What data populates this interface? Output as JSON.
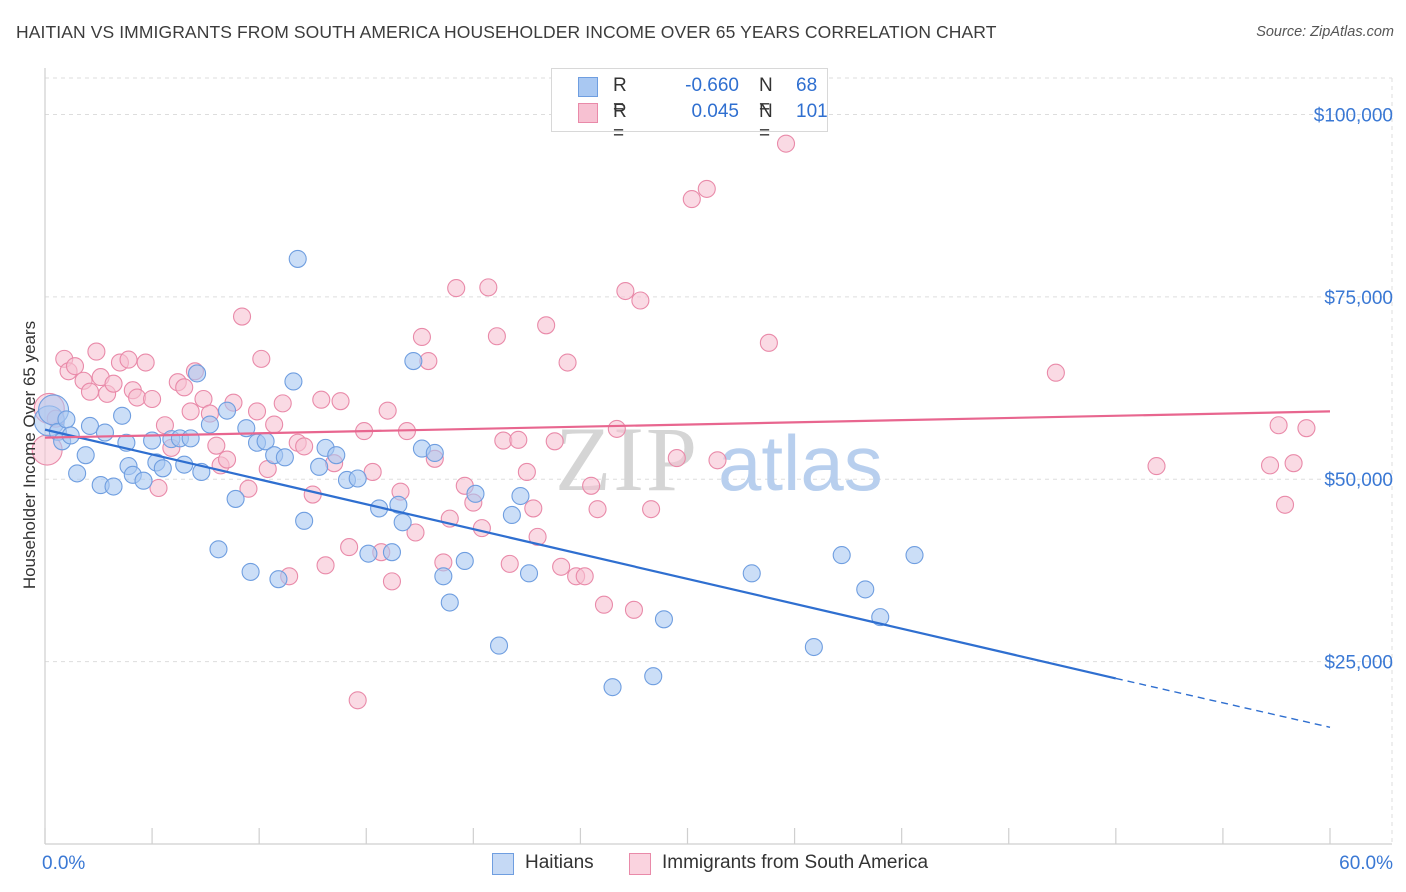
{
  "header": {
    "title": "HAITIAN VS IMMIGRANTS FROM SOUTH AMERICA HOUSEHOLDER INCOME OVER 65 YEARS CORRELATION CHART",
    "source": "Source: ZipAtlas.com"
  },
  "legend": {
    "series1": {
      "r_label": "R =",
      "r_value": "-0.660",
      "n_label": "N =",
      "n_value": "68"
    },
    "series2": {
      "r_label": "R =",
      "r_value": "0.045",
      "n_label": "N =",
      "n_value": "101"
    }
  },
  "watermark": {
    "zip": "ZIP",
    "atlas": "atlas"
  },
  "colors": {
    "blue_fill": "#a9c8f2",
    "blue_stroke": "#6f9ee0",
    "blue_line": "#2f6fd0",
    "pink_fill": "#f7c1d2",
    "pink_stroke": "#e98aa9",
    "pink_line": "#e8668f",
    "grid": "#dddddd",
    "tick_label": "#3a78d4"
  },
  "chart_data": {
    "type": "scatter",
    "title": "HAITIAN VS IMMIGRANTS FROM SOUTH AMERICA HOUSEHOLDER INCOME OVER 65 YEARS CORRELATION CHART",
    "xlabel": "",
    "ylabel": "Householder Income Over 65 years",
    "xlim": [
      0,
      60
    ],
    "ylim": [
      0,
      105000
    ],
    "x_tick_labels": [
      "0.0%",
      "60.0%"
    ],
    "y_ticks": [
      {
        "value": 25000,
        "label": "$25,000"
      },
      {
        "value": 50000,
        "label": "$50,000"
      },
      {
        "value": 75000,
        "label": "$75,000"
      },
      {
        "value": 100000,
        "label": "$100,000"
      }
    ],
    "series": [
      {
        "name": "Haitians",
        "color": "#a9c8f2",
        "trend": {
          "x_start": 0,
          "y_start": 56800,
          "x_end": 50,
          "y_end": 22700,
          "dashed_to_x": 60,
          "dashed_to_y": 16000
        },
        "points": [
          [
            0.2,
            58000
          ],
          [
            0.4,
            59500
          ],
          [
            0.6,
            56500
          ],
          [
            0.8,
            55200
          ],
          [
            1.0,
            58200
          ],
          [
            1.2,
            56000
          ],
          [
            1.5,
            50800
          ],
          [
            1.9,
            53300
          ],
          [
            2.1,
            57300
          ],
          [
            2.6,
            49200
          ],
          [
            2.8,
            56400
          ],
          [
            3.2,
            49000
          ],
          [
            3.6,
            58700
          ],
          [
            3.8,
            55000
          ],
          [
            3.9,
            51800
          ],
          [
            4.1,
            50600
          ],
          [
            4.6,
            49800
          ],
          [
            5.0,
            55300
          ],
          [
            5.2,
            52300
          ],
          [
            5.5,
            51500
          ],
          [
            5.9,
            55500
          ],
          [
            6.3,
            55600
          ],
          [
            6.5,
            52000
          ],
          [
            6.8,
            55600
          ],
          [
            7.1,
            64500
          ],
          [
            7.3,
            51000
          ],
          [
            7.7,
            57500
          ],
          [
            8.1,
            40400
          ],
          [
            8.5,
            59400
          ],
          [
            8.9,
            47300
          ],
          [
            9.4,
            57000
          ],
          [
            9.6,
            37300
          ],
          [
            9.9,
            55000
          ],
          [
            10.3,
            55200
          ],
          [
            10.7,
            53300
          ],
          [
            10.9,
            36300
          ],
          [
            11.2,
            53000
          ],
          [
            11.6,
            63400
          ],
          [
            11.8,
            80200
          ],
          [
            12.1,
            44300
          ],
          [
            12.8,
            51700
          ],
          [
            13.1,
            54300
          ],
          [
            13.6,
            53300
          ],
          [
            14.1,
            49900
          ],
          [
            14.6,
            50100
          ],
          [
            15.1,
            39800
          ],
          [
            15.6,
            46000
          ],
          [
            16.2,
            40000
          ],
          [
            16.5,
            46500
          ],
          [
            16.7,
            44100
          ],
          [
            17.2,
            66200
          ],
          [
            17.6,
            54200
          ],
          [
            18.2,
            53600
          ],
          [
            18.6,
            36700
          ],
          [
            18.9,
            33100
          ],
          [
            19.6,
            38800
          ],
          [
            20.1,
            48000
          ],
          [
            21.2,
            27200
          ],
          [
            21.8,
            45100
          ],
          [
            22.2,
            47700
          ],
          [
            22.6,
            37100
          ],
          [
            26.5,
            21500
          ],
          [
            28.4,
            23000
          ],
          [
            28.9,
            30800
          ],
          [
            33.0,
            37100
          ],
          [
            35.9,
            27000
          ],
          [
            37.2,
            39600
          ],
          [
            38.3,
            34900
          ],
          [
            39.0,
            31100
          ],
          [
            40.6,
            39600
          ]
        ]
      },
      {
        "name": "Immigrants from South America",
        "color": "#f7c1d2",
        "trend": {
          "x_start": 0,
          "y_start": 55700,
          "x_end": 60,
          "y_end": 59300
        },
        "points": [
          [
            0.1,
            54000
          ],
          [
            0.2,
            59700
          ],
          [
            0.5,
            58300
          ],
          [
            0.9,
            66500
          ],
          [
            1.1,
            64800
          ],
          [
            1.4,
            65500
          ],
          [
            1.8,
            63500
          ],
          [
            2.1,
            62000
          ],
          [
            2.4,
            67500
          ],
          [
            2.6,
            64000
          ],
          [
            2.9,
            61700
          ],
          [
            3.2,
            63100
          ],
          [
            3.5,
            66000
          ],
          [
            3.9,
            66400
          ],
          [
            4.1,
            62200
          ],
          [
            4.3,
            61200
          ],
          [
            4.7,
            66000
          ],
          [
            5.0,
            61000
          ],
          [
            5.3,
            48800
          ],
          [
            5.6,
            57400
          ],
          [
            5.9,
            54300
          ],
          [
            6.2,
            63300
          ],
          [
            6.5,
            62600
          ],
          [
            6.8,
            59300
          ],
          [
            7.0,
            64800
          ],
          [
            7.4,
            61000
          ],
          [
            7.7,
            59000
          ],
          [
            8.0,
            54600
          ],
          [
            8.2,
            51900
          ],
          [
            8.5,
            52700
          ],
          [
            8.8,
            60500
          ],
          [
            9.2,
            72300
          ],
          [
            9.5,
            48700
          ],
          [
            9.9,
            59300
          ],
          [
            10.1,
            66500
          ],
          [
            10.4,
            51400
          ],
          [
            10.7,
            57500
          ],
          [
            11.1,
            60400
          ],
          [
            11.4,
            36700
          ],
          [
            11.8,
            55000
          ],
          [
            12.1,
            54500
          ],
          [
            12.5,
            47900
          ],
          [
            12.9,
            60900
          ],
          [
            13.1,
            38200
          ],
          [
            13.5,
            52200
          ],
          [
            13.8,
            60700
          ],
          [
            14.2,
            40700
          ],
          [
            14.6,
            19700
          ],
          [
            14.9,
            56600
          ],
          [
            15.3,
            51000
          ],
          [
            15.7,
            40000
          ],
          [
            16.0,
            59400
          ],
          [
            16.2,
            36000
          ],
          [
            16.6,
            48300
          ],
          [
            16.9,
            56600
          ],
          [
            17.3,
            42700
          ],
          [
            17.6,
            69500
          ],
          [
            17.9,
            66200
          ],
          [
            18.2,
            52800
          ],
          [
            18.6,
            38600
          ],
          [
            18.9,
            44600
          ],
          [
            19.2,
            76200
          ],
          [
            19.6,
            49100
          ],
          [
            20.0,
            46800
          ],
          [
            20.4,
            43300
          ],
          [
            20.7,
            76300
          ],
          [
            21.1,
            69600
          ],
          [
            21.4,
            55300
          ],
          [
            21.7,
            38400
          ],
          [
            22.1,
            55400
          ],
          [
            22.5,
            51000
          ],
          [
            22.8,
            46000
          ],
          [
            23.0,
            42100
          ],
          [
            23.4,
            71100
          ],
          [
            23.8,
            55200
          ],
          [
            24.1,
            38000
          ],
          [
            24.4,
            66000
          ],
          [
            24.8,
            36700
          ],
          [
            25.2,
            36700
          ],
          [
            25.5,
            49100
          ],
          [
            25.8,
            45900
          ],
          [
            26.1,
            32800
          ],
          [
            26.7,
            56900
          ],
          [
            27.1,
            75800
          ],
          [
            27.5,
            32100
          ],
          [
            27.8,
            74500
          ],
          [
            28.3,
            45900
          ],
          [
            28.8,
            99000
          ],
          [
            29.5,
            52900
          ],
          [
            30.2,
            88400
          ],
          [
            30.9,
            89800
          ],
          [
            31.4,
            52600
          ],
          [
            33.8,
            68700
          ],
          [
            34.6,
            96000
          ],
          [
            47.2,
            64600
          ],
          [
            51.9,
            51800
          ],
          [
            57.2,
            51900
          ],
          [
            57.6,
            57400
          ],
          [
            57.9,
            46500
          ],
          [
            58.3,
            52200
          ],
          [
            58.9,
            57000
          ]
        ]
      }
    ]
  },
  "bottom_legend": {
    "series1_label": "Haitians",
    "series2_label": "Immigrants from South America"
  }
}
